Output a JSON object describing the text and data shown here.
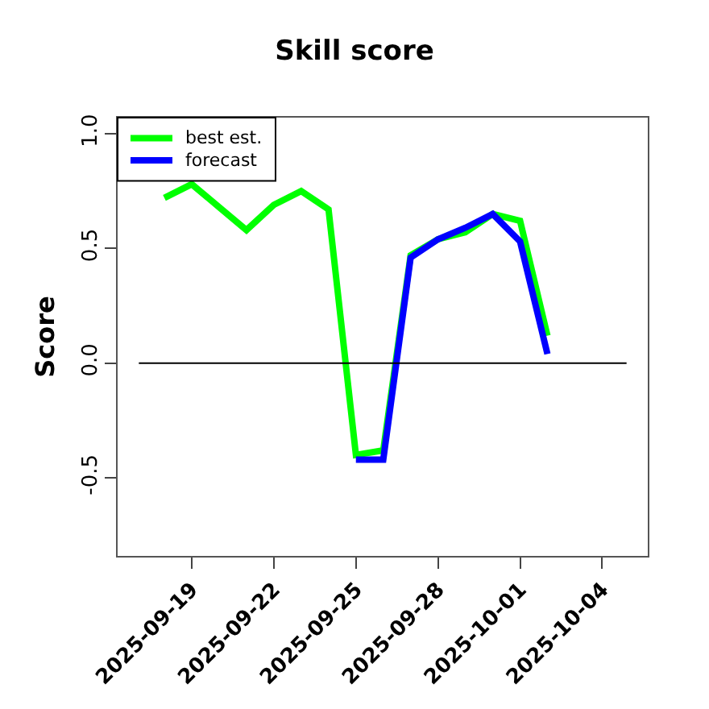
{
  "chart_data": {
    "type": "line",
    "title": "Skill score",
    "ylabel": "Score",
    "x": [
      "2025-09-18",
      "2025-09-19",
      "2025-09-20",
      "2025-09-21",
      "2025-09-22",
      "2025-09-23",
      "2025-09-24",
      "2025-09-25",
      "2025-09-26",
      "2025-09-27",
      "2025-09-28",
      "2025-09-29",
      "2025-09-30",
      "2025-10-01",
      "2025-10-02"
    ],
    "series": [
      {
        "name": "best est.",
        "color": "#00ff00",
        "values": [
          0.72,
          0.78,
          0.68,
          0.58,
          0.69,
          0.75,
          0.67,
          -0.4,
          -0.38,
          0.47,
          0.54,
          0.57,
          0.65,
          0.62,
          0.12
        ]
      },
      {
        "name": "forecast",
        "color": "#0000ff",
        "values": [
          null,
          null,
          null,
          null,
          null,
          null,
          null,
          -0.42,
          -0.42,
          0.46,
          0.54,
          0.59,
          0.65,
          0.53,
          0.04
        ]
      }
    ],
    "xlim": [
      "2025-09-16T07:00",
      "2025-10-05T16:00"
    ],
    "xticks": [
      "2025-09-19",
      "2025-09-22",
      "2025-09-25",
      "2025-09-28",
      "2025-10-01",
      "2025-10-04"
    ],
    "ylim": [
      -0.84,
      1.07
    ],
    "yticks": [
      {
        "value": -0.5,
        "label": "-0.5"
      },
      {
        "value": 0,
        "label": "0.0"
      },
      {
        "value": 0.5,
        "label": "0.5"
      },
      {
        "value": 1,
        "label": "1.0"
      }
    ],
    "ref_lines": [
      {
        "axis": "y",
        "value": 0,
        "color": "#000000"
      }
    ],
    "legend": "top left",
    "grid": false,
    "line_style": "solid",
    "marker": "none"
  }
}
